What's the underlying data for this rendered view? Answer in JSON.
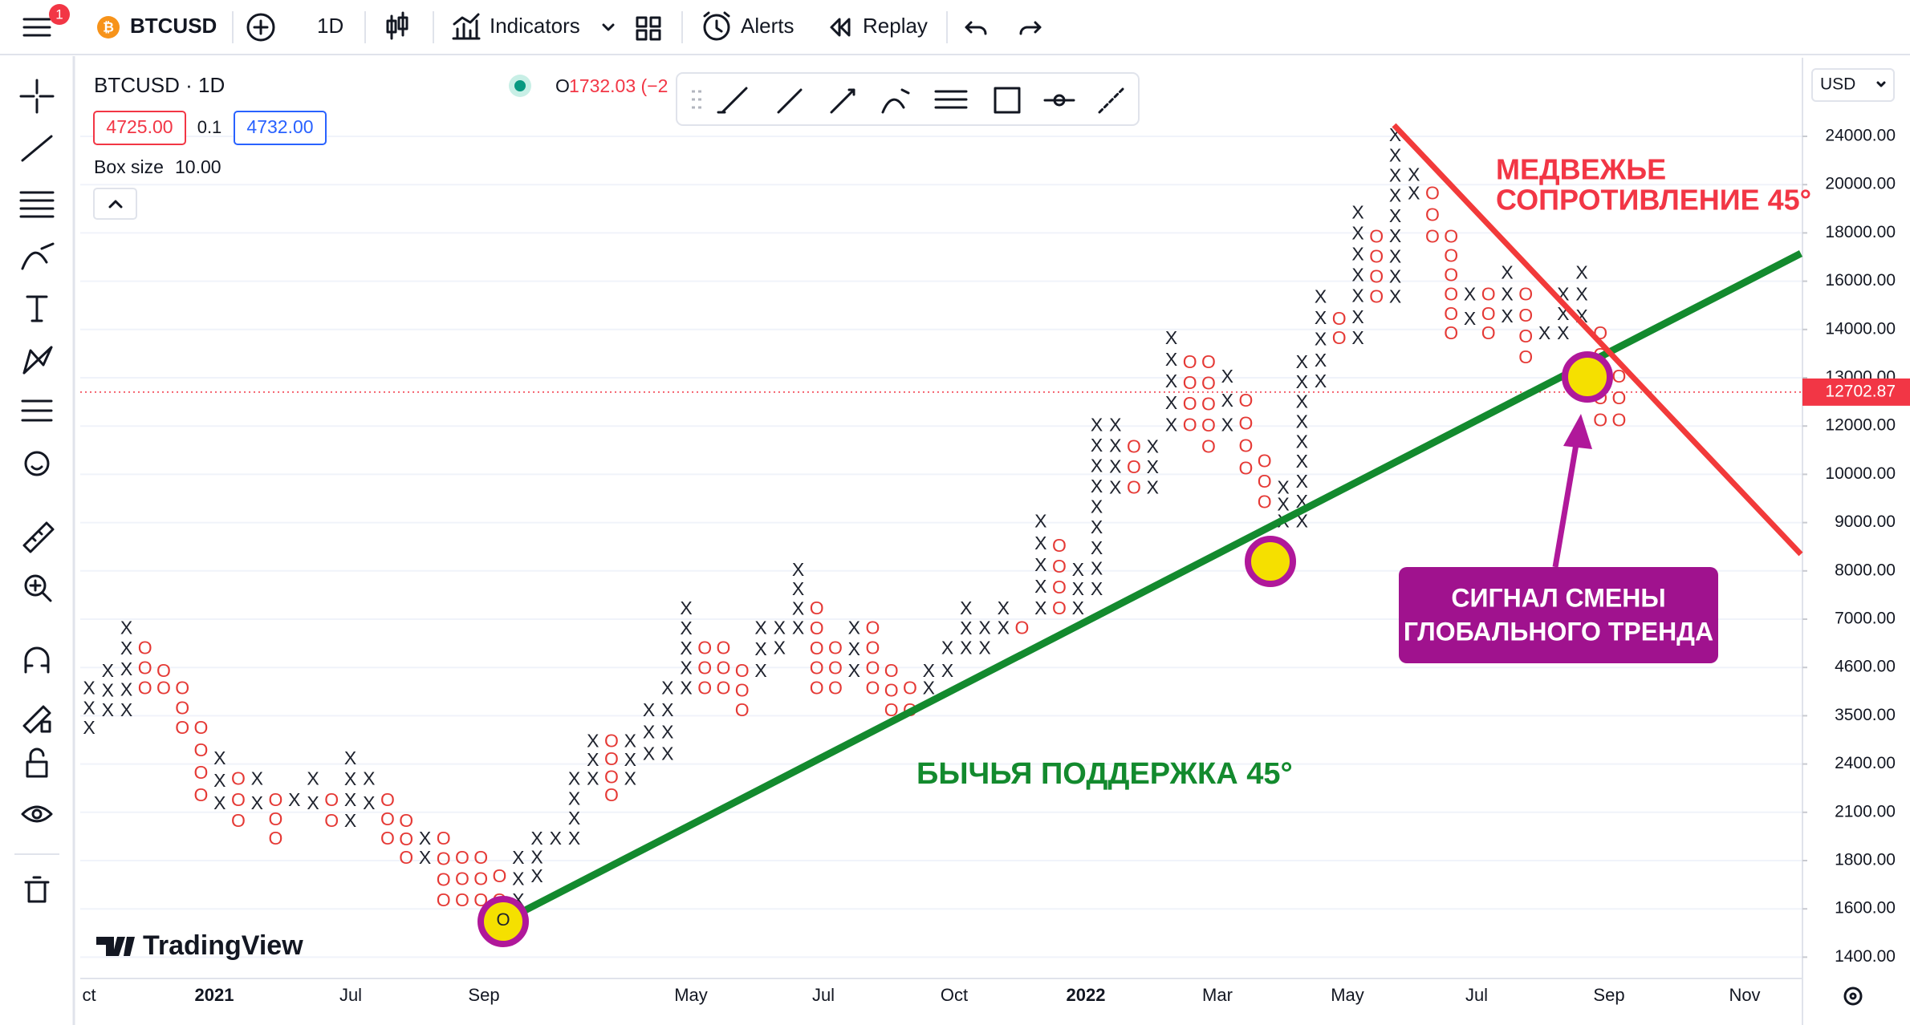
{
  "toolbar": {
    "notification_count": "1",
    "symbol": "BTCUSD",
    "interval": "1D",
    "indicators": "Indicators",
    "alerts": "Alerts",
    "replay": "Replay"
  },
  "legend": {
    "title": "BTCUSD · 1D",
    "open_label": "O",
    "open_value": "1732.03 (−2",
    "box_low": "4725.00",
    "reversal": "0.1",
    "box_high": "4732.00",
    "box_size_label": "Box size",
    "box_size": "10.00"
  },
  "currency": "USD",
  "logo": "TradingView",
  "chart_data": {
    "type": "point-and-figure",
    "columns": [
      {
        "mark": "X",
        "high": 4100,
        "low": 3200
      },
      {
        "mark": "X",
        "high": 4500,
        "low": 3600
      },
      {
        "mark": "X",
        "high": 6500,
        "low": 3600
      },
      {
        "mark": "O",
        "high": 5500,
        "low": 4100
      },
      {
        "mark": "O",
        "high": 4500,
        "low": 4100
      },
      {
        "mark": "O",
        "high": 4100,
        "low": 3200
      },
      {
        "mark": "O",
        "high": 3200,
        "low": 2200
      },
      {
        "mark": "X",
        "high": 2500,
        "low": 2150
      },
      {
        "mark": "O",
        "high": 2300,
        "low": 2040
      },
      {
        "mark": "X",
        "high": 2300,
        "low": 2150
      },
      {
        "mark": "O",
        "high": 2170,
        "low": 1930
      },
      {
        "mark": "X",
        "high": 2170,
        "low": 2170
      },
      {
        "mark": "X",
        "high": 2300,
        "low": 2150
      },
      {
        "mark": "O",
        "high": 2170,
        "low": 2040
      },
      {
        "mark": "X",
        "high": 2500,
        "low": 2040
      },
      {
        "mark": "X",
        "high": 2300,
        "low": 2150
      },
      {
        "mark": "O",
        "high": 2170,
        "low": 1930
      },
      {
        "mark": "O",
        "high": 2040,
        "low": 1810
      },
      {
        "mark": "X",
        "high": 1930,
        "low": 1810
      },
      {
        "mark": "O",
        "high": 1930,
        "low": 1630
      },
      {
        "mark": "O",
        "high": 1810,
        "low": 1630
      },
      {
        "mark": "O",
        "high": 1810,
        "low": 1630
      },
      {
        "mark": "O",
        "high": 1730,
        "low": 1630
      },
      {
        "mark": "X",
        "high": 1810,
        "low": 1630
      },
      {
        "mark": "X",
        "high": 1930,
        "low": 1730
      },
      {
        "mark": "X",
        "high": 1930,
        "low": 1930
      },
      {
        "mark": "X",
        "high": 2300,
        "low": 1930
      },
      {
        "mark": "X",
        "high": 2900,
        "low": 2300
      },
      {
        "mark": "O",
        "high": 2900,
        "low": 2200
      },
      {
        "mark": "X",
        "high": 2900,
        "low": 2300
      },
      {
        "mark": "X",
        "high": 3600,
        "low": 2600
      },
      {
        "mark": "X",
        "high": 4100,
        "low": 2600
      },
      {
        "mark": "X",
        "high": 7200,
        "low": 4100
      },
      {
        "mark": "O",
        "high": 5500,
        "low": 4100
      },
      {
        "mark": "O",
        "high": 5500,
        "low": 4100
      },
      {
        "mark": "O",
        "high": 4500,
        "low": 3600
      },
      {
        "mark": "X",
        "high": 6500,
        "low": 4500
      },
      {
        "mark": "X",
        "high": 6500,
        "low": 5500
      },
      {
        "mark": "X",
        "high": 8000,
        "low": 6500
      },
      {
        "mark": "O",
        "high": 7200,
        "low": 4100
      },
      {
        "mark": "O",
        "high": 5500,
        "low": 4100
      },
      {
        "mark": "X",
        "high": 6500,
        "low": 4500
      },
      {
        "mark": "O",
        "high": 6500,
        "low": 4100
      },
      {
        "mark": "O",
        "high": 4500,
        "low": 3600
      },
      {
        "mark": "O",
        "high": 4100,
        "low": 3600
      },
      {
        "mark": "X",
        "high": 4500,
        "low": 4100
      },
      {
        "mark": "X",
        "high": 5500,
        "low": 4500
      },
      {
        "mark": "X",
        "high": 7200,
        "low": 5500
      },
      {
        "mark": "X",
        "high": 6500,
        "low": 5500
      },
      {
        "mark": "X",
        "high": 7200,
        "low": 6500
      },
      {
        "mark": "O",
        "high": 6500,
        "low": 6500
      },
      {
        "mark": "X",
        "high": 9000,
        "low": 7200
      },
      {
        "mark": "O",
        "high": 8500,
        "low": 7200
      },
      {
        "mark": "X",
        "high": 8000,
        "low": 7200
      },
      {
        "mark": "X",
        "high": 12000,
        "low": 7600
      },
      {
        "mark": "X",
        "high": 12000,
        "low": 9700
      },
      {
        "mark": "O",
        "high": 11100,
        "low": 9700
      },
      {
        "mark": "X",
        "high": 11100,
        "low": 9700
      },
      {
        "mark": "X",
        "high": 13800,
        "low": 12000
      },
      {
        "mark": "O",
        "high": 13300,
        "low": 12000
      },
      {
        "mark": "O",
        "high": 13300,
        "low": 11100
      },
      {
        "mark": "X",
        "high": 13000,
        "low": 12000
      },
      {
        "mark": "O",
        "high": 12500,
        "low": 10200
      },
      {
        "mark": "O",
        "high": 10500,
        "low": 9400
      },
      {
        "mark": "X",
        "high": 9700,
        "low": 9000
      },
      {
        "mark": "X",
        "high": 13300,
        "low": 9000
      },
      {
        "mark": "X",
        "high": 15300,
        "low": 12900
      },
      {
        "mark": "O",
        "high": 14400,
        "low": 13800
      },
      {
        "mark": "X",
        "high": 18800,
        "low": 13800
      },
      {
        "mark": "O",
        "high": 17800,
        "low": 15300
      },
      {
        "mark": "X",
        "high": 24000,
        "low": 15300
      },
      {
        "mark": "X",
        "high": 20700,
        "low": 19600
      },
      {
        "mark": "O",
        "high": 19600,
        "low": 17800
      },
      {
        "mark": "O",
        "high": 17800,
        "low": 13900
      },
      {
        "mark": "X",
        "high": 15400,
        "low": 14400
      },
      {
        "mark": "O",
        "high": 15400,
        "low": 13900
      },
      {
        "mark": "X",
        "high": 16300,
        "low": 14500
      },
      {
        "mark": "O",
        "high": 15400,
        "low": 13400
      },
      {
        "mark": "X",
        "high": 13900,
        "low": 13900
      },
      {
        "mark": "X",
        "high": 15400,
        "low": 13900
      },
      {
        "mark": "X",
        "high": 16300,
        "low": 14500
      },
      {
        "mark": "O",
        "high": 13900,
        "low": 12100
      },
      {
        "mark": "O",
        "high": 13000,
        "low": 12100
      }
    ],
    "colors": {
      "X": "#1e222d",
      "O": "#e53935"
    },
    "x_labels": [
      {
        "text": "ct",
        "bold": false
      },
      {
        "text": "2021",
        "bold": true
      },
      {
        "text": "Jul",
        "bold": false
      },
      {
        "text": "Sep",
        "bold": false
      },
      {
        "text": "May",
        "bold": false
      },
      {
        "text": "Jul",
        "bold": false
      },
      {
        "text": "Oct",
        "bold": false
      },
      {
        "text": "2022",
        "bold": true
      },
      {
        "text": "Mar",
        "bold": false
      },
      {
        "text": "May",
        "bold": false
      },
      {
        "text": "Jul",
        "bold": false
      },
      {
        "text": "Sep",
        "bold": false
      },
      {
        "text": "Nov",
        "bold": false
      }
    ],
    "yticks": [
      {
        "value": 24000,
        "label": "24000.00"
      },
      {
        "value": 20000,
        "label": "20000.00"
      },
      {
        "value": 18000,
        "label": "18000.00"
      },
      {
        "value": 16000,
        "label": "16000.00"
      },
      {
        "value": 14000,
        "label": "14000.00"
      },
      {
        "value": 13000,
        "label": "13000.00"
      },
      {
        "value": 12000,
        "label": "12000.00"
      },
      {
        "value": 10000,
        "label": "10000.00"
      },
      {
        "value": 9000,
        "label": "9000.00"
      },
      {
        "value": 8000,
        "label": "8000.00"
      },
      {
        "value": 7000,
        "label": "7000.00"
      },
      {
        "value": 4600,
        "label": "4600.00"
      },
      {
        "value": 3500,
        "label": "3500.00"
      },
      {
        "value": 2400,
        "label": "2400.00"
      },
      {
        "value": 2100,
        "label": "2100.00"
      },
      {
        "value": 1800,
        "label": "1800.00"
      },
      {
        "value": 1600,
        "label": "1600.00"
      },
      {
        "value": 1400,
        "label": "1400.00"
      }
    ],
    "current_price": 12702.87,
    "annotations": {
      "bear_label": [
        "МЕДВЕЖЬЕ",
        "СОПРОТИВЛЕНИЕ 45°"
      ],
      "bull_label": "БЫЧЬЯ ПОДДЕРЖКА 45°",
      "signal_label": [
        "СИГНАЛ СМЕНЫ",
        "ГЛОБАЛЬНОГО ТРЕНДА"
      ],
      "start_marker": "O"
    }
  }
}
